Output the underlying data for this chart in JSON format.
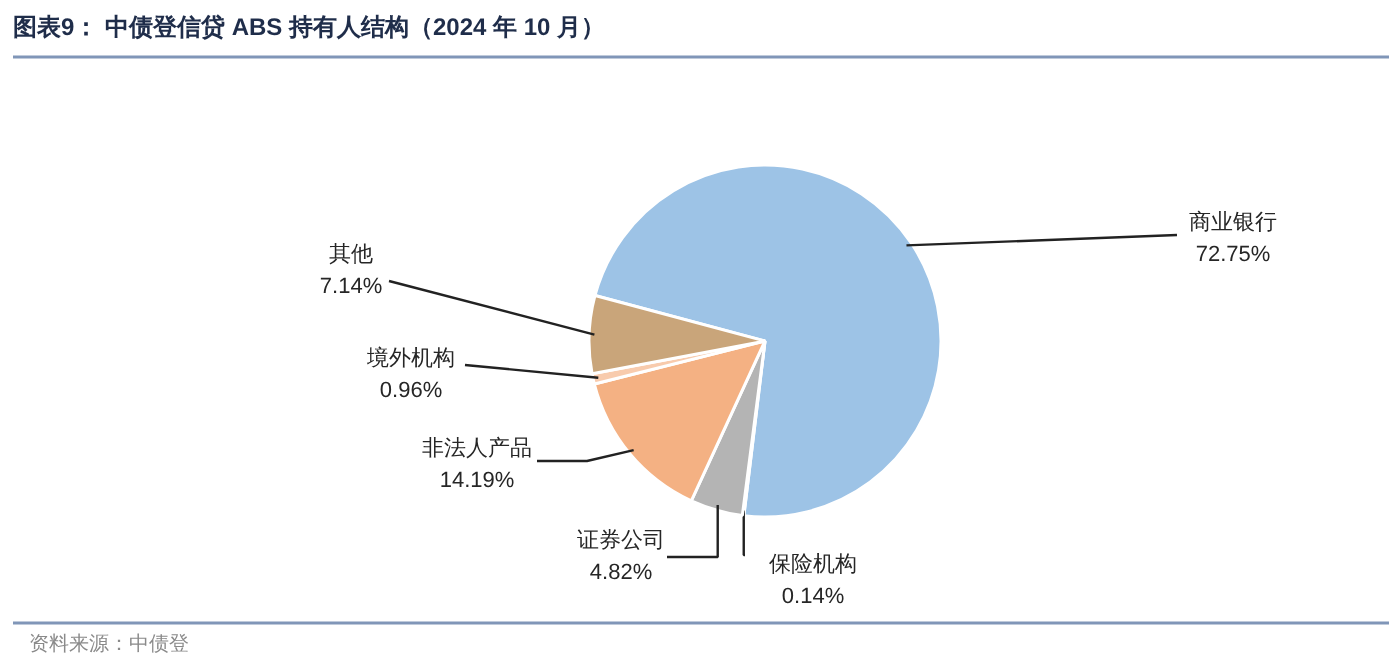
{
  "chart_data": {
    "type": "pie",
    "title": "图表9： 中债登信贷 ABS 持有人结构（2024 年 10 月）",
    "categories": [
      "商业银行",
      "保险机构",
      "证券公司",
      "非法人产品",
      "境外机构",
      "其他"
    ],
    "values": [
      72.75,
      0.14,
      4.82,
      14.19,
      0.96,
      7.14
    ],
    "value_labels": [
      "72.75%",
      "0.14%",
      "4.82%",
      "14.19%",
      "0.96%",
      "7.14%"
    ],
    "colors": [
      "#9dc3e6",
      "#8c8c8c",
      "#b4b4b4",
      "#f4b183",
      "#f8cbad",
      "#c9a57a"
    ],
    "annotations": [
      "资料来源：中债登"
    ]
  }
}
